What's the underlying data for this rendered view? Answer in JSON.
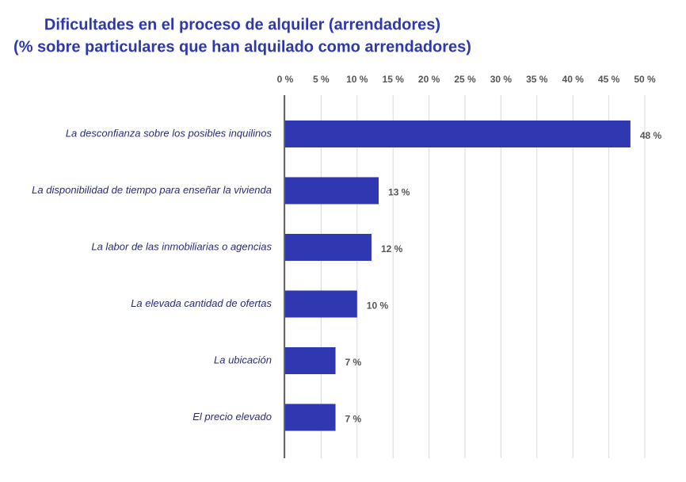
{
  "chart_data": {
    "type": "bar",
    "orientation": "horizontal",
    "title": "Dificultades en el proceso de alquiler (arrendadores)",
    "subtitle": "(% sobre particulares que han alquilado como arrendadores)",
    "categories": [
      "La desconfianza sobre los posibles inquilinos",
      "La disponibilidad de tiempo para enseñar la vivienda",
      "La labor de las inmobiliarias o agencias",
      "La elevada cantidad de ofertas",
      "La ubicación",
      "El precio elevado"
    ],
    "values": [
      48,
      13,
      12,
      10,
      7,
      7
    ],
    "value_labels": [
      "48 %",
      "13 %",
      "12 %",
      "10 %",
      "7 %",
      "7 %"
    ],
    "color": "#2f38b0",
    "xlim": [
      0,
      50
    ],
    "xticks": [
      {
        "value": 0,
        "label": "0 %"
      },
      {
        "value": 5,
        "label": "5 %"
      },
      {
        "value": 10,
        "label": "10 %"
      },
      {
        "value": 15,
        "label": "15 %"
      },
      {
        "value": 20,
        "label": "20 %"
      },
      {
        "value": 25,
        "label": "25 %"
      },
      {
        "value": 30,
        "label": "30 %"
      },
      {
        "value": 35,
        "label": "35 %"
      },
      {
        "value": 40,
        "label": "40 %"
      },
      {
        "value": 45,
        "label": "45 %"
      },
      {
        "value": 50,
        "label": "50 %"
      }
    ],
    "grid": true
  }
}
